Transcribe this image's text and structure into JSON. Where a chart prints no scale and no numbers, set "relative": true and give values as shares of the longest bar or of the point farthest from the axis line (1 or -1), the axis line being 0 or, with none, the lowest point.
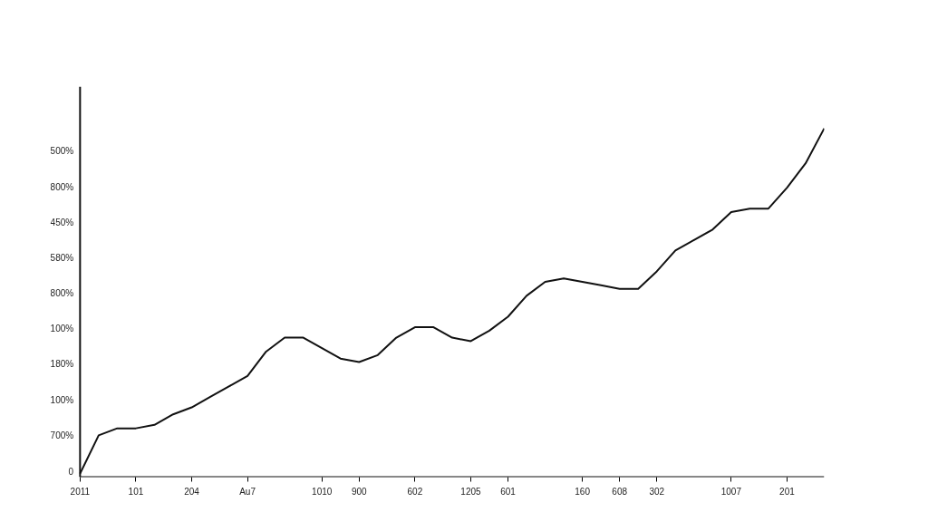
{
  "chart_data": {
    "type": "line",
    "relative": true,
    "categories": [
      "2011",
      null,
      null,
      "101",
      null,
      null,
      "204",
      null,
      null,
      "Au7",
      null,
      null,
      null,
      "1010",
      null,
      "900",
      null,
      null,
      "602",
      null,
      null,
      "1205",
      null,
      "601",
      null,
      null,
      null,
      "160",
      null,
      "608",
      null,
      "302",
      null,
      null,
      null,
      "1007",
      null,
      null,
      "201",
      null,
      null
    ],
    "annotations": [
      "0",
      "700%",
      "100%",
      "180%",
      "100%",
      "800%",
      "580%",
      "450%",
      "800%",
      "500%"
    ],
    "grid": false,
    "marker": "none",
    "line_style": "solid",
    "series": [
      {
        "color": "#111111",
        "values": [
          0.01,
          0.12,
          0.14,
          0.14,
          0.15,
          0.18,
          0.2,
          0.23,
          0.26,
          0.29,
          0.36,
          0.4,
          0.4,
          0.37,
          0.34,
          0.33,
          0.35,
          0.4,
          0.43,
          0.43,
          0.4,
          0.39,
          0.42,
          0.46,
          0.52,
          0.56,
          0.57,
          0.56,
          0.55,
          0.54,
          0.54,
          0.59,
          0.65,
          0.68,
          0.71,
          0.76,
          0.77,
          0.77,
          0.83,
          0.9,
          1
        ]
      }
    ]
  }
}
